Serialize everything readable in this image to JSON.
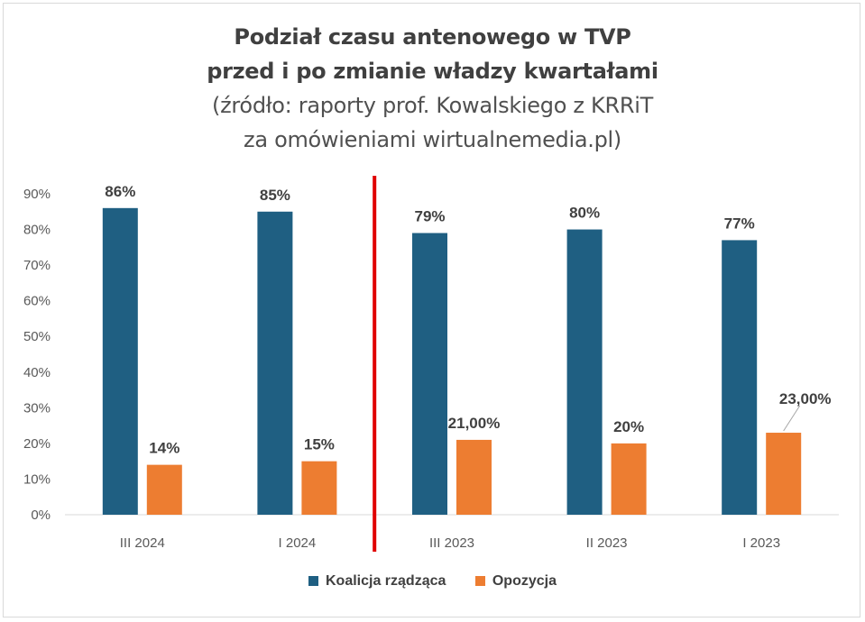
{
  "chart_data": {
    "type": "bar",
    "title": "Podział czasu antenowego w TVP",
    "title_line2": "przed i po zmianie władzy kwartałami",
    "subtitle": "(źródło: raporty prof. Kowalskiego z KRRiT",
    "subtitle_line2": "za omówieniami wirtualnemedia.pl)",
    "categories": [
      "III 2024",
      "I 2024",
      "III 2023",
      "II 2023",
      "I 2023"
    ],
    "series": [
      {
        "name": "Koalicja rządząca",
        "color": "#1f5f82",
        "values": [
          86,
          85,
          79,
          80,
          77
        ],
        "labels": [
          "86%",
          "85%",
          "79%",
          "80%",
          "77%"
        ]
      },
      {
        "name": "Opozycja",
        "color": "#ed7d31",
        "values": [
          14,
          15,
          21,
          20,
          23
        ],
        "labels": [
          "14%",
          "15%",
          "21,00%",
          "20%",
          "23,00%"
        ]
      }
    ],
    "y_ticks": [
      "0%",
      "10%",
      "20%",
      "30%",
      "40%",
      "50%",
      "60%",
      "70%",
      "80%",
      "90%"
    ],
    "ylim": [
      0,
      90
    ],
    "grid": false,
    "legend_position": "bottom",
    "divider_color": "#e00000"
  }
}
